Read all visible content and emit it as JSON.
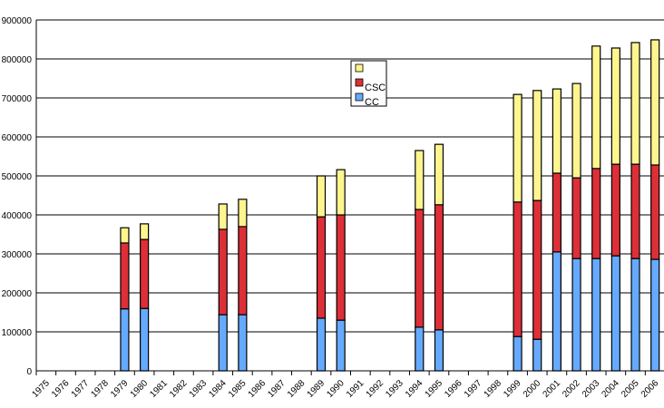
{
  "chart_data": {
    "type": "bar",
    "stacked": true,
    "title": "",
    "xlabel": "",
    "ylabel": "",
    "ylim": [
      0,
      900000
    ],
    "yticks": [
      0,
      100000,
      200000,
      300000,
      400000,
      500000,
      600000,
      700000,
      800000,
      900000
    ],
    "grid": true,
    "legend_position": "top-center",
    "categories": [
      "1975",
      "1976",
      "1977",
      "1978",
      "1979",
      "1980",
      "1981",
      "1982",
      "1983",
      "1984",
      "1985",
      "1986",
      "1987",
      "1988",
      "1989",
      "1990",
      "1991",
      "1992",
      "1993",
      "1994",
      "1995",
      "1996",
      "1997",
      "1998",
      "1999",
      "2000",
      "2001",
      "2002",
      "2003",
      "2004",
      "2005",
      "2006"
    ],
    "series": [
      {
        "name": "CC",
        "color": "#66aaff",
        "values": [
          0,
          0,
          0,
          0,
          159000,
          160000,
          0,
          0,
          0,
          144000,
          144000,
          0,
          0,
          0,
          135000,
          130000,
          0,
          0,
          0,
          112000,
          105000,
          0,
          0,
          0,
          88000,
          81000,
          305000,
          288000,
          288000,
          295000,
          288000,
          286000
        ]
      },
      {
        "name": "CSC",
        "color": "#dd2f37",
        "values": [
          0,
          0,
          0,
          0,
          169000,
          177000,
          0,
          0,
          0,
          219000,
          226000,
          0,
          0,
          0,
          260000,
          270000,
          0,
          0,
          0,
          302000,
          321000,
          0,
          0,
          0,
          345000,
          356000,
          202000,
          207000,
          231000,
          235000,
          242000,
          242000
        ]
      },
      {
        "name": "",
        "color": "#fff58f",
        "values": [
          0,
          0,
          0,
          0,
          39000,
          40000,
          0,
          0,
          0,
          65000,
          70000,
          0,
          0,
          0,
          105000,
          116000,
          0,
          0,
          0,
          151000,
          155000,
          0,
          0,
          0,
          276000,
          282000,
          216000,
          242000,
          314000,
          298000,
          312000,
          321000
        ]
      }
    ]
  }
}
